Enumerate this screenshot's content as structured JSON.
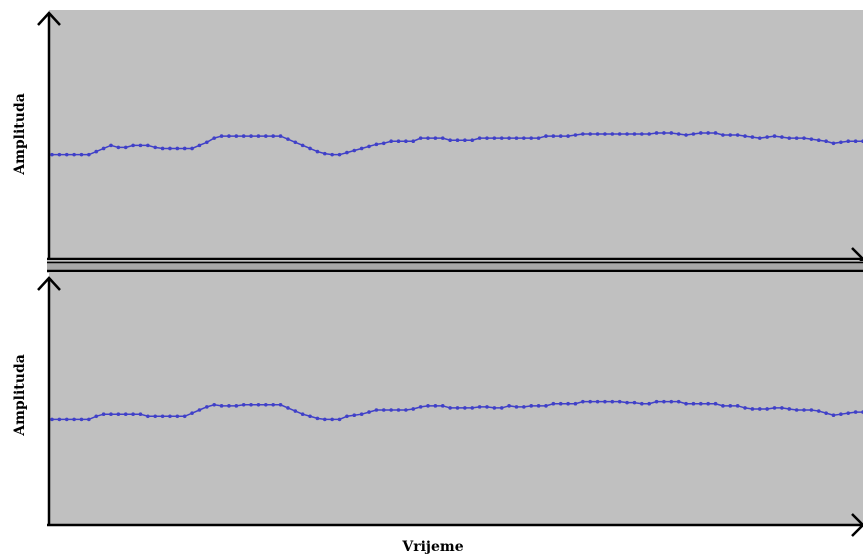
{
  "chart_data": [
    {
      "type": "line",
      "title": "",
      "xlabel": "",
      "ylabel": "Amplituda",
      "grid": false,
      "legend": "none",
      "series": [
        {
          "values": [
            0.0,
            0.0,
            0.0,
            0.0,
            0.0,
            0.0,
            0.3,
            0.6,
            0.9,
            0.7,
            0.7,
            0.9,
            0.9,
            0.9,
            0.7,
            0.6,
            0.6,
            0.6,
            0.6,
            0.6,
            0.9,
            1.2,
            1.6,
            1.8,
            1.8,
            1.8,
            1.8,
            1.8,
            1.8,
            1.8,
            1.8,
            1.8,
            1.5,
            1.2,
            0.9,
            0.6,
            0.3,
            0.1,
            0.0,
            0.0,
            0.2,
            0.4,
            0.6,
            0.8,
            1.0,
            1.1,
            1.3,
            1.3,
            1.3,
            1.3,
            1.6,
            1.6,
            1.6,
            1.6,
            1.4,
            1.4,
            1.4,
            1.4,
            1.6,
            1.6,
            1.6,
            1.6,
            1.6,
            1.6,
            1.6,
            1.6,
            1.6,
            1.8,
            1.8,
            1.8,
            1.8,
            1.9,
            2.0,
            2.0,
            2.0,
            2.0,
            2.0,
            2.0,
            2.0,
            2.0,
            2.0,
            2.0,
            2.1,
            2.1,
            2.1,
            2.0,
            1.9,
            2.0,
            2.1,
            2.1,
            2.1,
            1.9,
            1.9,
            1.9,
            1.8,
            1.7,
            1.6,
            1.7,
            1.8,
            1.7,
            1.6,
            1.6,
            1.6,
            1.5,
            1.4,
            1.3,
            1.1,
            1.2,
            1.3,
            1.3,
            1.3
          ]
        }
      ],
      "ylim": [
        -10,
        14
      ]
    },
    {
      "type": "line",
      "title": "",
      "xlabel": "Vrijeme",
      "ylabel": "Amplituda",
      "grid": false,
      "legend": "none",
      "series": [
        {
          "values": [
            0.0,
            0.0,
            0.0,
            0.0,
            0.0,
            0.0,
            0.3,
            0.5,
            0.5,
            0.5,
            0.5,
            0.5,
            0.5,
            0.3,
            0.3,
            0.3,
            0.3,
            0.3,
            0.3,
            0.6,
            0.9,
            1.2,
            1.4,
            1.3,
            1.3,
            1.3,
            1.4,
            1.4,
            1.4,
            1.4,
            1.4,
            1.4,
            1.1,
            0.8,
            0.5,
            0.3,
            0.1,
            0.0,
            0.0,
            0.0,
            0.3,
            0.4,
            0.5,
            0.7,
            0.9,
            0.9,
            0.9,
            0.9,
            0.9,
            1.0,
            1.2,
            1.3,
            1.3,
            1.3,
            1.1,
            1.1,
            1.1,
            1.1,
            1.2,
            1.2,
            1.1,
            1.1,
            1.3,
            1.2,
            1.2,
            1.3,
            1.3,
            1.3,
            1.5,
            1.5,
            1.5,
            1.5,
            1.7,
            1.7,
            1.7,
            1.7,
            1.7,
            1.7,
            1.6,
            1.6,
            1.5,
            1.5,
            1.7,
            1.7,
            1.7,
            1.7,
            1.5,
            1.5,
            1.5,
            1.5,
            1.5,
            1.3,
            1.3,
            1.3,
            1.1,
            1.0,
            1.0,
            1.0,
            1.1,
            1.1,
            1.0,
            0.9,
            0.9,
            0.9,
            0.8,
            0.6,
            0.4,
            0.5,
            0.6,
            0.7,
            0.7
          ]
        }
      ],
      "ylim": [
        -10,
        14
      ]
    }
  ],
  "colors": {
    "plot_background": "#c0c0c0",
    "line": "#4040c8",
    "axis": "#000000",
    "separator": "#a8a8a8"
  }
}
